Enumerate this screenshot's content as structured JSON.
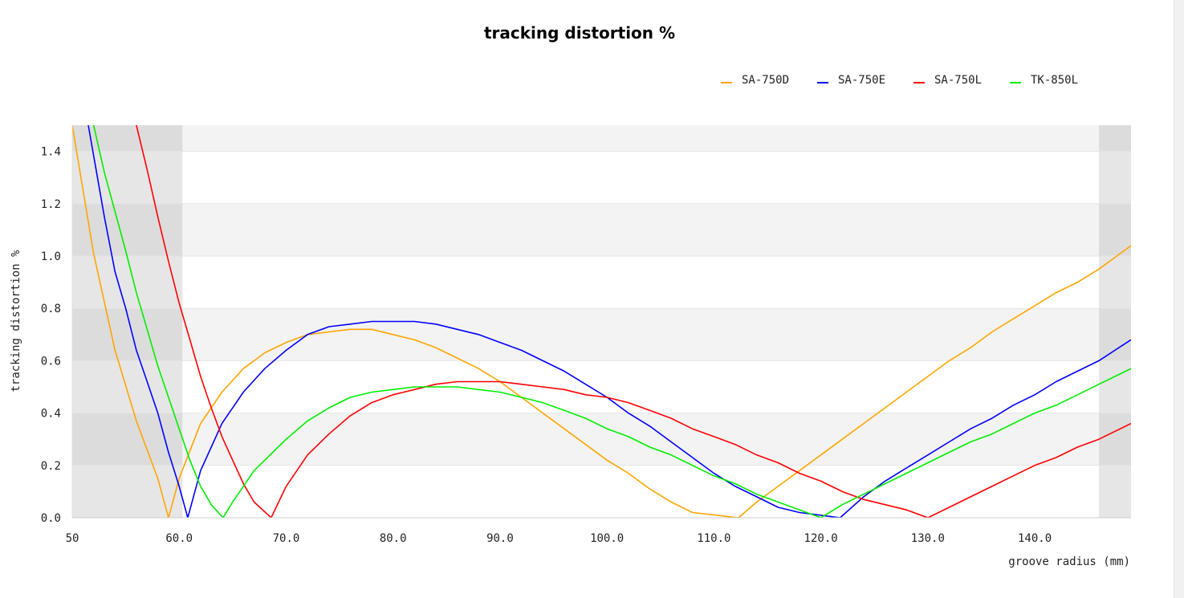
{
  "chart_data": {
    "type": "line",
    "title": "tracking distortion %",
    "xlabel": "groove radius (mm)",
    "ylabel": "tracking distortion %",
    "xlim": [
      50,
      149
    ],
    "ylim": [
      0,
      1.5
    ],
    "grid": "alternating horizontal bands",
    "legend_position": "top-right",
    "shaded_x_regions": [
      [
        50,
        60.3
      ],
      [
        146,
        149
      ]
    ],
    "x_ticks": [
      {
        "value": 50,
        "label": "50"
      },
      {
        "value": 60,
        "label": "60.0"
      },
      {
        "value": 70,
        "label": "70.0"
      },
      {
        "value": 80,
        "label": "80.0"
      },
      {
        "value": 90,
        "label": "90.0"
      },
      {
        "value": 100,
        "label": "100.0"
      },
      {
        "value": 110,
        "label": "110.0"
      },
      {
        "value": 120,
        "label": "120.0"
      },
      {
        "value": 130,
        "label": "130.0"
      },
      {
        "value": 140,
        "label": "140.0"
      }
    ],
    "y_ticks": [
      {
        "value": 0,
        "label": "0.0"
      },
      {
        "value": 0.2,
        "label": "0.2"
      },
      {
        "value": 0.4,
        "label": "0.4"
      },
      {
        "value": 0.6,
        "label": "0.6"
      },
      {
        "value": 0.8,
        "label": "0.8"
      },
      {
        "value": 1.0,
        "label": "1.0"
      },
      {
        "value": 1.2,
        "label": "1.2"
      },
      {
        "value": 1.4,
        "label": "1.4"
      }
    ],
    "series": [
      {
        "name": "SA-750D",
        "color": "#ffa500",
        "points": [
          [
            50,
            1.5
          ],
          [
            52,
            1.01
          ],
          [
            54,
            0.64
          ],
          [
            56,
            0.37
          ],
          [
            58,
            0.15
          ],
          [
            59,
            0
          ],
          [
            60,
            0.15
          ],
          [
            62,
            0.36
          ],
          [
            64,
            0.48
          ],
          [
            66,
            0.57
          ],
          [
            68,
            0.63
          ],
          [
            70,
            0.67
          ],
          [
            72,
            0.7
          ],
          [
            74,
            0.71
          ],
          [
            76,
            0.72
          ],
          [
            78,
            0.72
          ],
          [
            80,
            0.7
          ],
          [
            82,
            0.68
          ],
          [
            84,
            0.65
          ],
          [
            86,
            0.61
          ],
          [
            88,
            0.57
          ],
          [
            90,
            0.52
          ],
          [
            92,
            0.46
          ],
          [
            94,
            0.4
          ],
          [
            96,
            0.34
          ],
          [
            98,
            0.28
          ],
          [
            100,
            0.22
          ],
          [
            102,
            0.17
          ],
          [
            104,
            0.11
          ],
          [
            106,
            0.06
          ],
          [
            108,
            0.02
          ],
          [
            112.3,
            0
          ],
          [
            114,
            0.06
          ],
          [
            116,
            0.12
          ],
          [
            118,
            0.18
          ],
          [
            120,
            0.24
          ],
          [
            122,
            0.3
          ],
          [
            124,
            0.36
          ],
          [
            126,
            0.42
          ],
          [
            128,
            0.48
          ],
          [
            130,
            0.54
          ],
          [
            132,
            0.6
          ],
          [
            134,
            0.65
          ],
          [
            136,
            0.71
          ],
          [
            138,
            0.76
          ],
          [
            140,
            0.81
          ],
          [
            142,
            0.86
          ],
          [
            144,
            0.9
          ],
          [
            146,
            0.95
          ],
          [
            149,
            1.04
          ]
        ]
      },
      {
        "name": "SA-750E",
        "color": "#0000ff",
        "points": [
          [
            51.5,
            1.5
          ],
          [
            53,
            1.15
          ],
          [
            54,
            0.94
          ],
          [
            55,
            0.8
          ],
          [
            56,
            0.64
          ],
          [
            57,
            0.52
          ],
          [
            58,
            0.4
          ],
          [
            59,
            0.25
          ],
          [
            60,
            0.12
          ],
          [
            60.8,
            0
          ],
          [
            62,
            0.18
          ],
          [
            64,
            0.36
          ],
          [
            66,
            0.48
          ],
          [
            68,
            0.57
          ],
          [
            70,
            0.64
          ],
          [
            72,
            0.7
          ],
          [
            74,
            0.73
          ],
          [
            76,
            0.74
          ],
          [
            78,
            0.75
          ],
          [
            80,
            0.75
          ],
          [
            82,
            0.75
          ],
          [
            84,
            0.74
          ],
          [
            86,
            0.72
          ],
          [
            88,
            0.7
          ],
          [
            90,
            0.67
          ],
          [
            92,
            0.64
          ],
          [
            94,
            0.6
          ],
          [
            96,
            0.56
          ],
          [
            98,
            0.51
          ],
          [
            100,
            0.46
          ],
          [
            102,
            0.4
          ],
          [
            104,
            0.35
          ],
          [
            106,
            0.29
          ],
          [
            108,
            0.23
          ],
          [
            110,
            0.17
          ],
          [
            112,
            0.12
          ],
          [
            114,
            0.08
          ],
          [
            116,
            0.04
          ],
          [
            118,
            0.02
          ],
          [
            121.8,
            0
          ],
          [
            124,
            0.08
          ],
          [
            126,
            0.14
          ],
          [
            128,
            0.19
          ],
          [
            130,
            0.24
          ],
          [
            132,
            0.29
          ],
          [
            134,
            0.34
          ],
          [
            136,
            0.38
          ],
          [
            138,
            0.43
          ],
          [
            140,
            0.47
          ],
          [
            142,
            0.52
          ],
          [
            144,
            0.56
          ],
          [
            146,
            0.6
          ],
          [
            149,
            0.68
          ]
        ]
      },
      {
        "name": "SA-750L",
        "color": "#ff0000",
        "points": [
          [
            56,
            1.5
          ],
          [
            57,
            1.33
          ],
          [
            58,
            1.15
          ],
          [
            59,
            0.98
          ],
          [
            60,
            0.82
          ],
          [
            61,
            0.68
          ],
          [
            62,
            0.54
          ],
          [
            63,
            0.42
          ],
          [
            64,
            0.31
          ],
          [
            65,
            0.22
          ],
          [
            66,
            0.13
          ],
          [
            67,
            0.06
          ],
          [
            68.6,
            0
          ],
          [
            70,
            0.12
          ],
          [
            72,
            0.24
          ],
          [
            74,
            0.32
          ],
          [
            76,
            0.39
          ],
          [
            78,
            0.44
          ],
          [
            80,
            0.47
          ],
          [
            82,
            0.49
          ],
          [
            84,
            0.51
          ],
          [
            86,
            0.52
          ],
          [
            88,
            0.52
          ],
          [
            90,
            0.52
          ],
          [
            92,
            0.51
          ],
          [
            94,
            0.5
          ],
          [
            96,
            0.49
          ],
          [
            98,
            0.47
          ],
          [
            100,
            0.46
          ],
          [
            102,
            0.44
          ],
          [
            104,
            0.41
          ],
          [
            106,
            0.38
          ],
          [
            108,
            0.34
          ],
          [
            110,
            0.31
          ],
          [
            112,
            0.28
          ],
          [
            114,
            0.24
          ],
          [
            116,
            0.21
          ],
          [
            118,
            0.17
          ],
          [
            120,
            0.14
          ],
          [
            122,
            0.1
          ],
          [
            124,
            0.07
          ],
          [
            126,
            0.05
          ],
          [
            128,
            0.03
          ],
          [
            130,
            0
          ],
          [
            132,
            0.04
          ],
          [
            134,
            0.08
          ],
          [
            136,
            0.12
          ],
          [
            138,
            0.16
          ],
          [
            140,
            0.2
          ],
          [
            142,
            0.23
          ],
          [
            144,
            0.27
          ],
          [
            146,
            0.3
          ],
          [
            149,
            0.36
          ]
        ]
      },
      {
        "name": "TK-850L",
        "color": "#00ee00",
        "points": [
          [
            52,
            1.5
          ],
          [
            53,
            1.32
          ],
          [
            54,
            1.17
          ],
          [
            55,
            1.02
          ],
          [
            56,
            0.86
          ],
          [
            57,
            0.72
          ],
          [
            58,
            0.58
          ],
          [
            59,
            0.46
          ],
          [
            60,
            0.34
          ],
          [
            61,
            0.22
          ],
          [
            62,
            0.12
          ],
          [
            63,
            0.05
          ],
          [
            64.1,
            0
          ],
          [
            65,
            0.06
          ],
          [
            66,
            0.12
          ],
          [
            67,
            0.18
          ],
          [
            68,
            0.22
          ],
          [
            70,
            0.3
          ],
          [
            72,
            0.37
          ],
          [
            74,
            0.42
          ],
          [
            76,
            0.46
          ],
          [
            78,
            0.48
          ],
          [
            80,
            0.49
          ],
          [
            82,
            0.5
          ],
          [
            84,
            0.5
          ],
          [
            86,
            0.5
          ],
          [
            88,
            0.49
          ],
          [
            90,
            0.48
          ],
          [
            92,
            0.46
          ],
          [
            94,
            0.44
          ],
          [
            96,
            0.41
          ],
          [
            98,
            0.38
          ],
          [
            100,
            0.34
          ],
          [
            102,
            0.31
          ],
          [
            104,
            0.27
          ],
          [
            106,
            0.24
          ],
          [
            108,
            0.2
          ],
          [
            110,
            0.16
          ],
          [
            112,
            0.13
          ],
          [
            114,
            0.09
          ],
          [
            116,
            0.06
          ],
          [
            118,
            0.03
          ],
          [
            120,
            0
          ],
          [
            122,
            0.05
          ],
          [
            124,
            0.09
          ],
          [
            126,
            0.13
          ],
          [
            128,
            0.17
          ],
          [
            130,
            0.21
          ],
          [
            132,
            0.25
          ],
          [
            134,
            0.29
          ],
          [
            136,
            0.32
          ],
          [
            138,
            0.36
          ],
          [
            140,
            0.4
          ],
          [
            142,
            0.43
          ],
          [
            144,
            0.47
          ],
          [
            146,
            0.51
          ],
          [
            149,
            0.57
          ]
        ]
      }
    ]
  }
}
